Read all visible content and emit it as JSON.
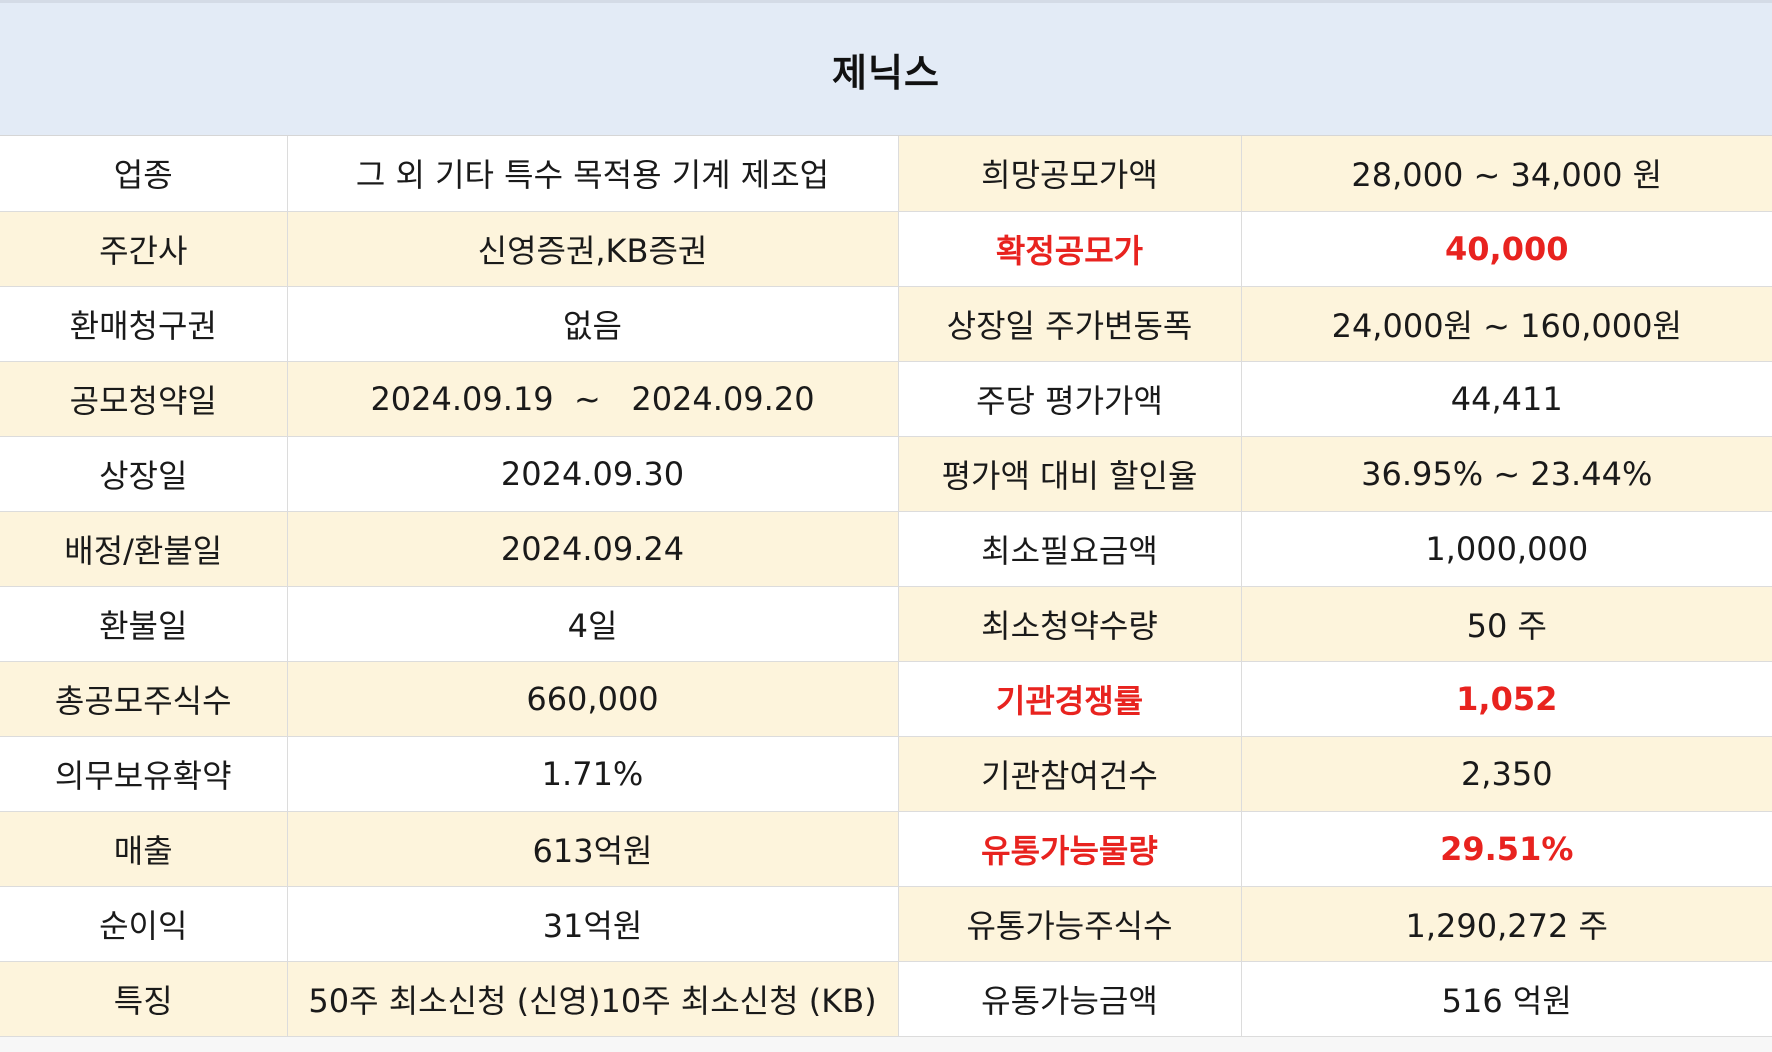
{
  "title": "제닉스",
  "rows": [
    {
      "label_left": "업종",
      "value_left": "그 외 기타 특수 목적용 기계 제조업",
      "label_right": "희망공모가액",
      "value_right": "28,000 ~ 34,000 원",
      "highlight_right": false
    },
    {
      "label_left": "주간사",
      "value_left": "신영증권,KB증권",
      "label_right": "확정공모가",
      "value_right": "40,000",
      "highlight_right": true
    },
    {
      "label_left": "환매청구권",
      "value_left": "없음",
      "label_right": "상장일 주가변동폭",
      "value_right": "24,000원 ~ 160,000원",
      "highlight_right": false
    },
    {
      "label_left": "공모청약일",
      "value_left": "2024.09.19  ~   2024.09.20",
      "label_right": "주당 평가가액",
      "value_right": "44,411",
      "highlight_right": false
    },
    {
      "label_left": "상장일",
      "value_left": "2024.09.30",
      "label_right": "평가액 대비 할인율",
      "value_right": "36.95% ~ 23.44%",
      "highlight_right": false
    },
    {
      "label_left": "배정/환불일",
      "value_left": "2024.09.24",
      "label_right": "최소필요금액",
      "value_right": "1,000,000",
      "highlight_right": false
    },
    {
      "label_left": "환불일",
      "value_left": "4일",
      "label_right": "최소청약수량",
      "value_right": "50 주",
      "highlight_right": false
    },
    {
      "label_left": "총공모주식수",
      "value_left": "660,000",
      "label_right": "기관경쟁률",
      "value_right": "1,052",
      "highlight_right": true
    },
    {
      "label_left": "의무보유확약",
      "value_left": "1.71%",
      "label_right": "기관참여건수",
      "value_right": "2,350",
      "highlight_right": false
    },
    {
      "label_left": "매출",
      "value_left": "613억원",
      "label_right": "유통가능물량",
      "value_right": "29.51%",
      "highlight_right": true
    },
    {
      "label_left": "순이익",
      "value_left": "31억원",
      "label_right": "유통가능주식수",
      "value_right": "1,290,272 주",
      "highlight_right": false
    },
    {
      "label_left": "특징",
      "value_left": "50주 최소신청 (신영)10주 최소신청 (KB)",
      "label_right": "유통가능금액",
      "value_right": "516 억원",
      "highlight_right": false
    }
  ],
  "colors": {
    "header_background": "#e3ebf6",
    "cream_row": "#fdf4dc",
    "white_row": "#ffffff",
    "highlight_text": "#e8231f"
  }
}
